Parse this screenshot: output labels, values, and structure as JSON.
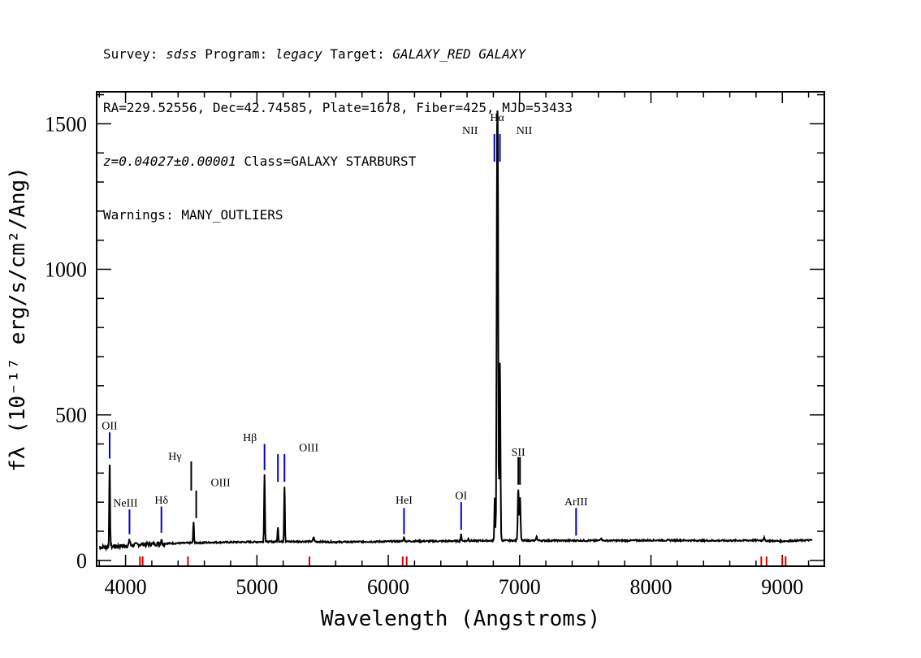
{
  "header": {
    "line1": {
      "survey_label": "Survey: ",
      "survey_value": "sdss",
      "program_label": " Program: ",
      "program_value": "legacy",
      "target_label": " Target: ",
      "target_value": "GALAXY_RED GALAXY"
    },
    "line2": "RA=229.52556, Dec=42.74585, Plate=1678, Fiber=425, MJD=53433",
    "line3": {
      "z_value": "z=0.04027±0.00001",
      "class_text": " Class=GALAXY STARBURST"
    },
    "line4": "Warnings: MANY_OUTLIERS"
  },
  "chart_data": {
    "type": "line",
    "xlabel": "Wavelength (Angstroms)",
    "ylabel": "fλ (10⁻¹⁷ erg/s/cm²/Ang)",
    "xlim": [
      3780,
      9320
    ],
    "ylim": [
      -20,
      1610
    ],
    "x_ticks": [
      4000,
      5000,
      6000,
      7000,
      8000,
      9000
    ],
    "y_ticks": [
      0,
      500,
      1000,
      1500
    ],
    "continuum": [
      [
        3800,
        45
      ],
      [
        3850,
        46
      ],
      [
        3900,
        48
      ],
      [
        4000,
        50
      ],
      [
        4100,
        55
      ],
      [
        4300,
        58
      ],
      [
        4500,
        60
      ],
      [
        4700,
        62
      ],
      [
        4900,
        63
      ],
      [
        5100,
        64
      ],
      [
        5400,
        65
      ],
      [
        5600,
        63
      ],
      [
        5800,
        64
      ],
      [
        6000,
        65
      ],
      [
        6200,
        66
      ],
      [
        6400,
        66
      ],
      [
        6600,
        67
      ],
      [
        6800,
        68
      ],
      [
        7000,
        68
      ],
      [
        7200,
        68
      ],
      [
        7400,
        68
      ],
      [
        7600,
        68
      ],
      [
        7800,
        68
      ],
      [
        8000,
        69
      ],
      [
        8200,
        69
      ],
      [
        8400,
        68
      ],
      [
        8600,
        68
      ],
      [
        8800,
        69
      ],
      [
        9000,
        66
      ],
      [
        9230,
        70
      ]
    ],
    "peaks": [
      {
        "x": 3879,
        "y": 335,
        "w": 3
      },
      {
        "x": 4030,
        "y": 70,
        "w": 4
      },
      {
        "x": 4273,
        "y": 75,
        "w": 3
      },
      {
        "x": 4518,
        "y": 130,
        "w": 3
      },
      {
        "x": 5058,
        "y": 295,
        "w": 3
      },
      {
        "x": 5160,
        "y": 115,
        "w": 3
      },
      {
        "x": 5210,
        "y": 255,
        "w": 3
      },
      {
        "x": 5432,
        "y": 80,
        "w": 4
      },
      {
        "x": 6120,
        "y": 75,
        "w": 5
      },
      {
        "x": 6555,
        "y": 90,
        "w": 3
      },
      {
        "x": 6610,
        "y": 75,
        "w": 3
      },
      {
        "x": 6811,
        "y": 215,
        "w": 3
      },
      {
        "x": 6829,
        "y": 1355,
        "w": 4
      },
      {
        "x": 6835,
        "y": 900,
        "w": 3
      },
      {
        "x": 6850,
        "y": 680,
        "w": 4
      },
      {
        "x": 6990,
        "y": 245,
        "w": 4
      },
      {
        "x": 7003,
        "y": 215,
        "w": 4
      },
      {
        "x": 7130,
        "y": 80,
        "w": 4
      },
      {
        "x": 7620,
        "y": 76,
        "w": 6
      },
      {
        "x": 8860,
        "y": 78,
        "w": 4
      }
    ],
    "lines": [
      {
        "label": "OII",
        "x": 3879,
        "y0": 350,
        "y1": 440,
        "color": "#0000cc",
        "label_y": 450,
        "label_dx": 0
      },
      {
        "label": "NeIII",
        "x": 4030,
        "y0": 90,
        "y1": 175,
        "color": "#0000cc",
        "label_y": 185,
        "label_dx": -5
      },
      {
        "label": "Hδ",
        "x": 4273,
        "y0": 95,
        "y1": 185,
        "color": "#0000cc",
        "label_y": 195,
        "label_dx": 0
      },
      {
        "label": "Hγ",
        "x": 4500,
        "y0": 240,
        "y1": 340,
        "color": "#000000",
        "label_y": 345,
        "label_dx": -20
      },
      {
        "label": "OIII",
        "x": 4538,
        "y0": 145,
        "y1": 240,
        "color": "#000000",
        "label_y": 255,
        "label_dx": 30
      },
      {
        "label": "Hβ",
        "x": 5058,
        "y0": 310,
        "y1": 400,
        "color": "#0000cc",
        "label_y": 410,
        "label_dx": -18
      },
      {
        "label": "OIII",
        "x": 5160,
        "y0": 270,
        "y1": 365,
        "color": "#0000cc",
        "label_y": 375,
        "label_dx": 38
      },
      {
        "label": "OIII",
        "x": 5210,
        "y0": 270,
        "y1": 365,
        "color": "#0000cc",
        "label_y": -9999,
        "label_dx": 0
      },
      {
        "label": "HeI",
        "x": 6120,
        "y0": 90,
        "y1": 180,
        "color": "#0000cc",
        "label_y": 195,
        "label_dx": 0
      },
      {
        "label": "OI",
        "x": 6555,
        "y0": 105,
        "y1": 200,
        "color": "#0000cc",
        "label_y": 210,
        "label_dx": 0
      },
      {
        "label": "NII",
        "x": 6808,
        "y0": 1370,
        "y1": 1465,
        "color": "#0000cc",
        "label_y": 1465,
        "label_dx": -30
      },
      {
        "label": "Hα",
        "x": 6829,
        "y0": 1400,
        "y1": 1500,
        "color": "#000000",
        "label_y": 1510,
        "label_dx": 0
      },
      {
        "label": "NII",
        "x": 6850,
        "y0": 1370,
        "y1": 1465,
        "color": "#0000cc",
        "label_y": 1465,
        "label_dx": 30
      },
      {
        "label": "SII",
        "x": 6990,
        "y0": 260,
        "y1": 355,
        "color": "#000000",
        "label_y": 360,
        "label_dx": 0
      },
      {
        "label": "SII",
        "x": 7003,
        "y0": 260,
        "y1": 355,
        "color": "#000000",
        "label_y": -9999,
        "label_dx": 0
      },
      {
        "label": "ArIII",
        "x": 7430,
        "y0": 85,
        "y1": 180,
        "color": "#0000cc",
        "label_y": 190,
        "label_dx": 0
      }
    ],
    "red_marks": [
      4110,
      4130,
      4475,
      5400,
      6110,
      6140,
      8840,
      8880,
      9000,
      9025
    ],
    "colors": {
      "spectrum": "#000000",
      "emission": "#0000cc",
      "skyline": "#cc0000"
    }
  }
}
